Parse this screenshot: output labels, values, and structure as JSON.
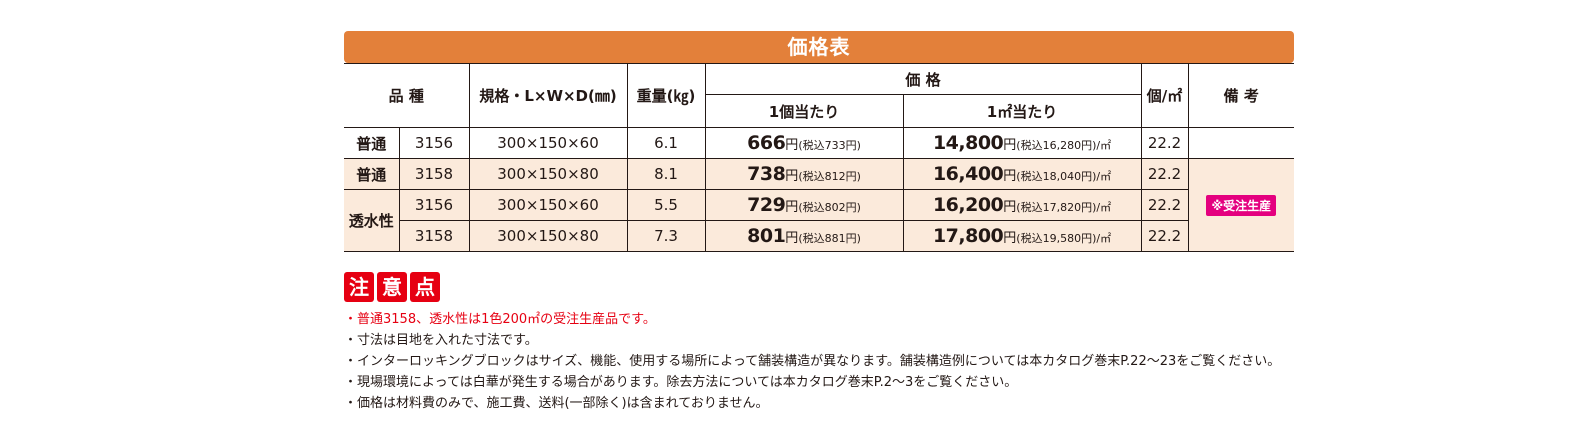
{
  "title": "価格表",
  "headers": {
    "kind": "品 種",
    "spec": "規格・L×W×D(㎜)",
    "weight": "重量(㎏)",
    "price": "価 格",
    "price_unit": "1個当たり",
    "price_sqm": "1㎡当たり",
    "per_sqm": "個/㎡",
    "remarks": "備 考"
  },
  "rows": [
    {
      "kind": "普通",
      "code": "3156",
      "spec": "300×150×60",
      "weight": "6.1",
      "unit_price": "666",
      "unit_tax": "(税込733円)",
      "sqm_price": "14,800",
      "sqm_tax": "(税込16,280円)/㎡",
      "per_sqm": "22.2"
    },
    {
      "kind": "普通",
      "code": "3158",
      "spec": "300×150×80",
      "weight": "8.1",
      "unit_price": "738",
      "unit_tax": "(税込812円)",
      "sqm_price": "16,400",
      "sqm_tax": "(税込18,040円)/㎡",
      "per_sqm": "22.2"
    },
    {
      "kind": "透水性",
      "code": "3156",
      "spec": "300×150×60",
      "weight": "5.5",
      "unit_price": "729",
      "unit_tax": "(税込802円)",
      "sqm_price": "16,200",
      "sqm_tax": "(税込17,820円)/㎡",
      "per_sqm": "22.2"
    },
    {
      "kind": "透水性",
      "code": "3158",
      "spec": "300×150×80",
      "weight": "7.3",
      "unit_price": "801",
      "unit_tax": "(税込881円)",
      "sqm_price": "17,800",
      "sqm_tax": "(税込19,580円)/㎡",
      "per_sqm": "22.2"
    }
  ],
  "yen": "円",
  "remark_badge": "※受注生産",
  "notes_title": [
    "注",
    "意",
    "点"
  ],
  "notes": [
    "・普通3158、透水性は1色200㎡の受注生産品です。",
    "・寸法は目地を入れた寸法です。",
    "・インターロッキングブロックはサイズ、機能、使用する場所によって舗装構造が異なります。舗装構造例については本カタログ巻末P.22〜23をご覧ください。",
    "・現場環境によっては白華が発生する場合があります。除去方法については本カタログ巻末P.2〜3をご覧ください。",
    "・価格は材料費のみで、施工費、送料(一部除く)は含まれておりません。"
  ],
  "colors": {
    "title_bar": "#e3803a",
    "row_shade": "#fbeadb",
    "notes_red": "#e60012",
    "badge": "#e4007f"
  }
}
